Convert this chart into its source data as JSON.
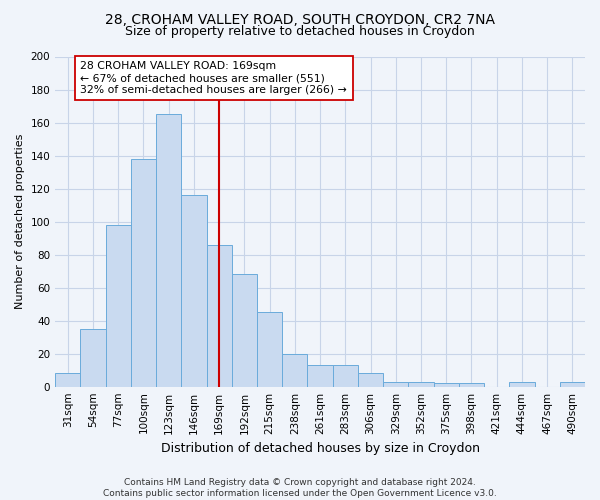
{
  "title1": "28, CROHAM VALLEY ROAD, SOUTH CROYDON, CR2 7NA",
  "title2": "Size of property relative to detached houses in Croydon",
  "xlabel": "Distribution of detached houses by size in Croydon",
  "ylabel": "Number of detached properties",
  "footnote": "Contains HM Land Registry data © Crown copyright and database right 2024.\nContains public sector information licensed under the Open Government Licence v3.0.",
  "bin_labels": [
    "31sqm",
    "54sqm",
    "77sqm",
    "100sqm",
    "123sqm",
    "146sqm",
    "169sqm",
    "192sqm",
    "215sqm",
    "238sqm",
    "261sqm",
    "283sqm",
    "306sqm",
    "329sqm",
    "352sqm",
    "375sqm",
    "398sqm",
    "421sqm",
    "444sqm",
    "467sqm",
    "490sqm"
  ],
  "bar_heights": [
    8,
    35,
    98,
    138,
    165,
    116,
    86,
    68,
    45,
    20,
    13,
    13,
    8,
    3,
    3,
    2,
    2,
    0,
    3,
    0,
    3
  ],
  "bar_color": "#c9daf0",
  "bar_edge_color": "#6aabdb",
  "property_line_index": 6,
  "property_line_color": "#cc0000",
  "annotation_line1": "28 CROHAM VALLEY ROAD: 169sqm",
  "annotation_line2": "← 67% of detached houses are smaller (551)",
  "annotation_line3": "32% of semi-detached houses are larger (266) →",
  "annotation_box_facecolor": "#ffffff",
  "annotation_box_edgecolor": "#cc0000",
  "ylim": [
    0,
    200
  ],
  "yticks": [
    0,
    20,
    40,
    60,
    80,
    100,
    120,
    140,
    160,
    180,
    200
  ],
  "grid_color": "#c8d4e8",
  "bg_color": "#f0f4fa",
  "plot_bg_color": "#f0f4fa",
  "title1_fontsize": 10,
  "title2_fontsize": 9,
  "xlabel_fontsize": 9,
  "ylabel_fontsize": 8,
  "tick_fontsize": 7.5,
  "footnote_fontsize": 6.5
}
